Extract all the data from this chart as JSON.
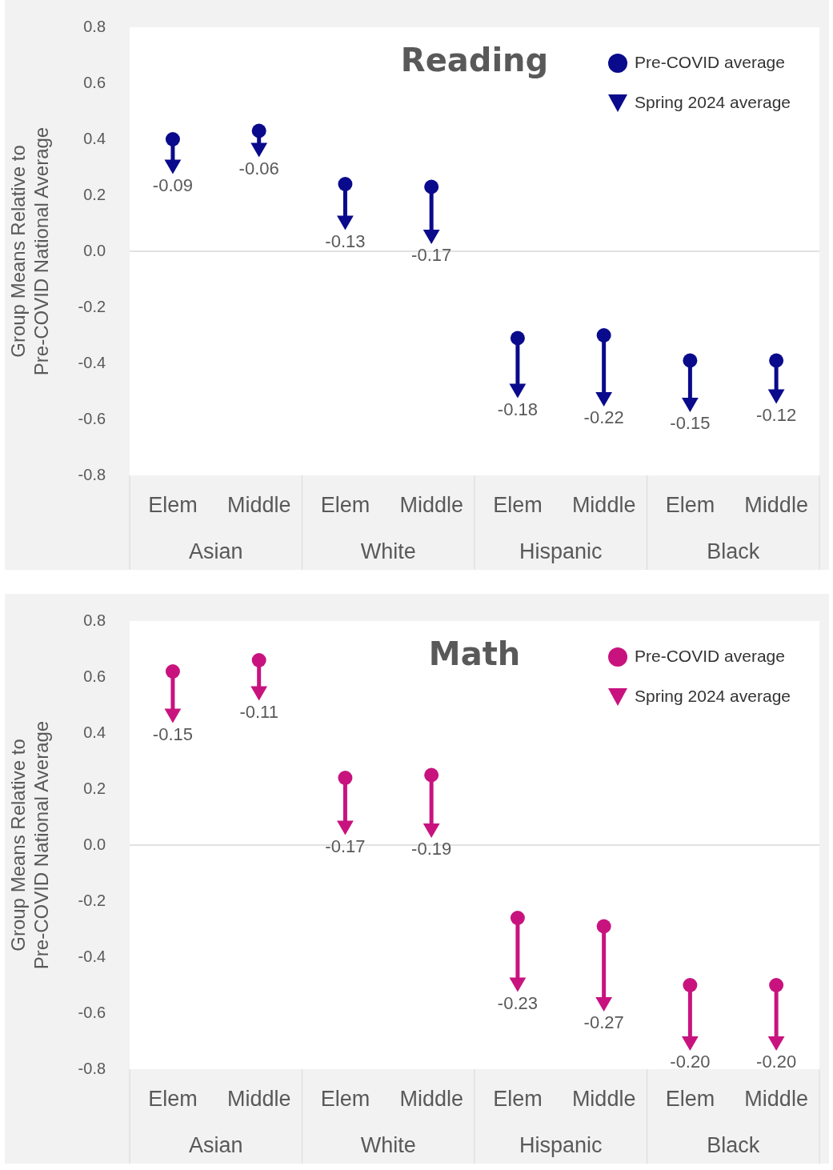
{
  "chart_data": [
    {
      "type": "scatter",
      "title": "Reading",
      "ylabel": "Group Means Relative to\nPre-COVID National Average",
      "categories": [
        "Elem",
        "Middle",
        "Elem",
        "Middle",
        "Elem",
        "Middle",
        "Elem",
        "Middle"
      ],
      "annotations": [
        "Asian",
        "White",
        "Hispanic",
        "Black",
        "-0.09",
        "-0.06",
        "-0.13",
        "-0.17",
        "-0.18",
        "-0.22",
        "-0.15",
        "-0.12"
      ],
      "ylim": [
        -0.8,
        0.8
      ],
      "yticks": [
        -0.8,
        -0.6,
        -0.4,
        -0.2,
        {
          "value": 0,
          "label": "0.0"
        },
        0.2,
        0.4,
        0.6,
        0.8
      ],
      "legend": "top right",
      "ref_lines": [
        {
          "axis": "y",
          "value": 0,
          "color": "#d9d9d9"
        }
      ],
      "series": [
        {
          "name": "Pre-COVID average",
          "color": "#0a0a8c",
          "marker": "circle",
          "values": [
            0.4,
            0.43,
            0.24,
            0.23,
            -0.31,
            -0.3,
            -0.39,
            -0.39
          ]
        },
        {
          "name": "Spring 2024 average",
          "color": "#0a0a8c",
          "marker": "triangle",
          "values": [
            0.31,
            0.37,
            0.11,
            0.06,
            -0.49,
            -0.52,
            -0.54,
            -0.51
          ]
        }
      ]
    },
    {
      "type": "scatter",
      "title": "Math",
      "ylabel": "Group Means Relative to\nPre-COVID National Average",
      "categories": [
        "Elem",
        "Middle",
        "Elem",
        "Middle",
        "Elem",
        "Middle",
        "Elem",
        "Middle"
      ],
      "annotations": [
        "Asian",
        "White",
        "Hispanic",
        "Black",
        "-0.15",
        "-0.11",
        "-0.17",
        "-0.19",
        "-0.23",
        "-0.27",
        "-0.20",
        "-0.20"
      ],
      "ylim": [
        -0.8,
        0.8
      ],
      "yticks": [
        -0.8,
        -0.6,
        -0.4,
        -0.2,
        {
          "value": 0,
          "label": "0.0"
        },
        0.2,
        0.4,
        0.6,
        0.8
      ],
      "legend": "top right",
      "ref_lines": [
        {
          "axis": "y",
          "value": 0,
          "color": "#d9d9d9"
        }
      ],
      "series": [
        {
          "name": "Pre-COVID average",
          "color": "#c8137f",
          "marker": "circle",
          "values": [
            0.62,
            0.66,
            0.24,
            0.25,
            -0.26,
            -0.29,
            -0.5,
            -0.5
          ]
        },
        {
          "name": "Spring 2024 average",
          "color": "#c8137f",
          "marker": "triangle",
          "values": [
            0.47,
            0.55,
            0.07,
            0.06,
            -0.49,
            -0.56,
            -0.7,
            -0.7
          ]
        }
      ]
    }
  ]
}
